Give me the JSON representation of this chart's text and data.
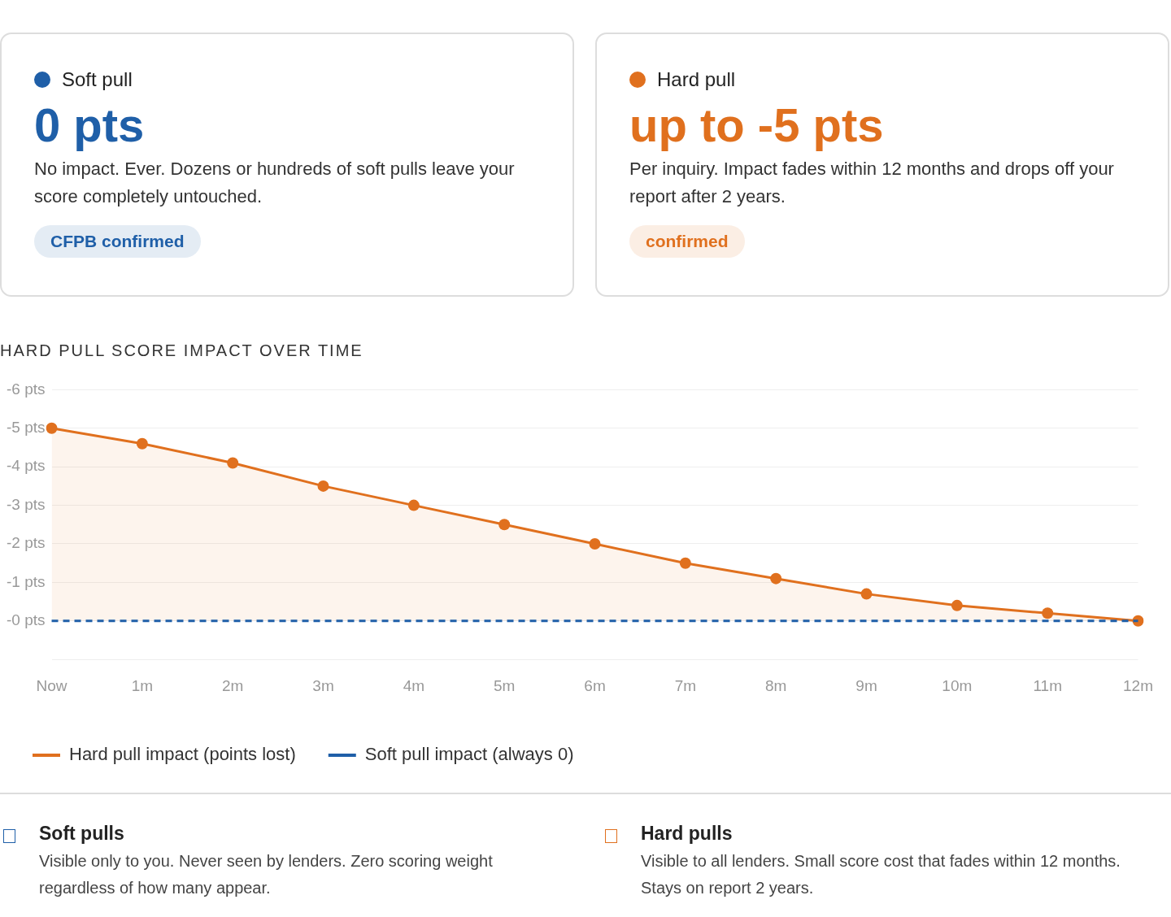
{
  "chart_data": [
    {
      "type": "other",
      "title": "Soft pull",
      "subtitle": "0 pts",
      "color": "#1f5fa8",
      "annotations": [
        "No impact. Ever. Dozens or hundreds of soft pulls leave your score completely untouched.",
        "CFPB confirmed"
      ]
    },
    {
      "type": "other",
      "title": "Hard pull",
      "subtitle": "up to -5 pts",
      "color": "#e0701e",
      "annotations": [
        "Per inquiry. Impact fades within 12 months and drops off your report after 2 years.",
        "confirmed"
      ]
    },
    {
      "type": "line",
      "title": "HARD PULL SCORE IMPACT OVER TIME",
      "categories": [
        "Now",
        "1m",
        "2m",
        "3m",
        "4m",
        "5m",
        "6m",
        "7m",
        "8m",
        "9m",
        "10m",
        "11m",
        "12m"
      ],
      "series": [
        {
          "name": "Hard pull impact (points lost)",
          "type": "area",
          "color": "#e0701e",
          "marker": "circle",
          "values": [
            -5,
            -4.6,
            -4.1,
            -3.5,
            -3,
            -2.5,
            -2,
            -1.5,
            -1.1,
            -0.7,
            -0.4,
            -0.2,
            0
          ]
        },
        {
          "name": "Soft pull impact (always 0)",
          "type": "line",
          "color": "#1f5fa8",
          "marker": "none",
          "line_style": "dashed",
          "values": [
            0,
            0,
            0,
            0,
            0,
            0,
            0,
            0,
            0,
            0,
            0,
            0,
            0
          ]
        }
      ],
      "ylim": [
        1,
        -6
      ],
      "yticks": [
        {
          "value": -6,
          "label": "-6 pts"
        },
        {
          "value": -5,
          "label": "-5 pts"
        },
        {
          "value": -4,
          "label": "-4 pts"
        },
        {
          "value": -3,
          "label": "-3 pts"
        },
        {
          "value": -2,
          "label": "-2 pts"
        },
        {
          "value": -1,
          "label": "-1 pts"
        },
        {
          "value": 0,
          "label": "-0 pts"
        },
        {
          "value": 1,
          "label": null
        }
      ],
      "grid": "y",
      "legend": "bottom left"
    },
    {
      "type": "other",
      "title": "Soft pulls",
      "color": "#1f5fa8",
      "annotations": [
        "Visible only to you. Never seen by lenders. Zero scoring weight regardless of how many appear."
      ]
    },
    {
      "type": "other",
      "title": "Hard pulls",
      "color": "#e0701e",
      "annotations": [
        "Visible to all lenders. Small score cost that fades within 12 months. Stays on report 2 years."
      ]
    }
  ]
}
